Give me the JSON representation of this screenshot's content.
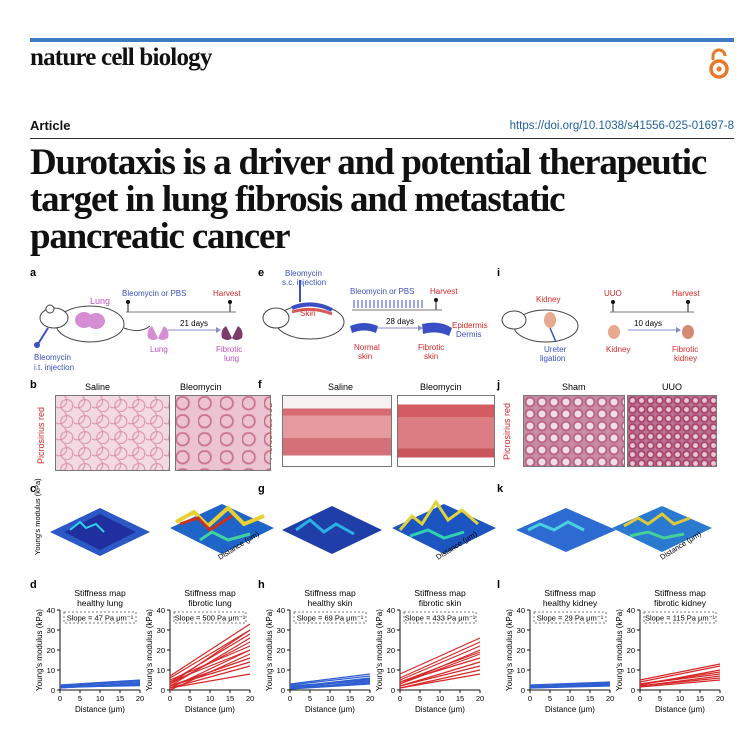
{
  "header": {
    "journal": "nature cell biology",
    "article_type": "Article",
    "doi": "https://doi.org/10.1038/s41556-025-01697-8"
  },
  "title": "Durotaxis is a driver and potential therapeutic target in lung fibrosis and metastatic pancreatic cancer",
  "colors": {
    "accent": "#3b7cc4",
    "oa_orange": "#e8782a",
    "blue_fit": "#2f5fd0",
    "red_fit": "#d62828"
  },
  "panels": {
    "a": {
      "label": "a",
      "organ": "Lung",
      "treatment": "Bleomycin or PBS",
      "harvest": "Harvest",
      "duration": "21 days",
      "injection": "Bleomycin\ni.t. injection",
      "start": "Lung",
      "end": "Fibrotic\nlung"
    },
    "e": {
      "label": "e",
      "injection": "Bleomycin\ns.c. injection",
      "organ": "Skin",
      "treatment": "Bleomycin or PBS",
      "harvest": "Harvest",
      "duration": "28 days",
      "start": "Normal\nskin",
      "end": "Fibrotic\nskin",
      "layer1": "Epidermis",
      "layer2": "Dermis"
    },
    "i": {
      "label": "i",
      "organ": "Kidney",
      "treatment": "UUO",
      "harvest": "Harvest",
      "duration": "10 days",
      "injection": "Ureter\nligation",
      "start": "Kidney",
      "end": "Fibrotic\nkidney"
    },
    "b": {
      "label": "b",
      "left": "Saline",
      "right": "Bleomycin"
    },
    "f": {
      "label": "f",
      "left": "Saline",
      "right": "Bleomycin",
      "stain": "Picrosirius red"
    },
    "j": {
      "label": "j",
      "left": "Sham",
      "right": "UUO",
      "stain": "Picrosirius red"
    },
    "c": {
      "label": "c",
      "zlabel": "Young's modulus\n(kPa)",
      "ticks": [
        "0",
        "20",
        "40",
        "60",
        "80"
      ],
      "zticks": [
        "0",
        "10",
        "20"
      ],
      "dist": "Distance (μm)"
    },
    "g": {
      "label": "g",
      "ticks": [
        "0",
        "20",
        "40",
        "60",
        "80"
      ],
      "zticks": [
        "0",
        "10",
        "20"
      ],
      "dist": "Distance (μm)"
    },
    "k": {
      "label": "k",
      "ticks": [
        "0",
        "20",
        "40",
        "60",
        "80"
      ],
      "zticks": [
        "0",
        "5",
        "10"
      ],
      "dist": "Distance (μm)"
    }
  },
  "chart_data": [
    {
      "type": "line",
      "panel": "d",
      "title": "Stiffness map\nhealthy lung",
      "annotation": "Slope = 47 Pa μm⁻¹",
      "xlabel": "Distance (μm)",
      "ylabel": "Young's modulus (kPa)",
      "xlim": [
        0,
        20
      ],
      "ylim": [
        0,
        40
      ],
      "xticks": [
        0,
        5,
        10,
        15,
        20
      ],
      "yticks": [
        0,
        10,
        20,
        30,
        40
      ],
      "color": "#2f5fd0",
      "lines": [
        [
          1.2,
          2.5
        ],
        [
          1.5,
          3.2
        ],
        [
          2,
          4
        ],
        [
          1,
          3.5
        ],
        [
          1.8,
          2.8
        ],
        [
          2.2,
          4.6
        ],
        [
          1.4,
          2.2
        ],
        [
          2.5,
          5
        ]
      ]
    },
    {
      "type": "line",
      "panel": "d2",
      "title": "Stiffness map\nfibrotic lung",
      "annotation": "Slope = 500 Pa μm⁻¹",
      "xlabel": "Distance (μm)",
      "ylabel": "Young's modulus (kPa)",
      "xlim": [
        0,
        20
      ],
      "ylim": [
        0,
        40
      ],
      "xticks": [
        0,
        5,
        10,
        15,
        20
      ],
      "yticks": [
        0,
        10,
        20,
        30,
        40
      ],
      "color": "#d62828",
      "lines": [
        [
          1,
          20
        ],
        [
          2,
          26
        ],
        [
          3,
          30
        ],
        [
          1,
          12
        ],
        [
          4,
          28
        ],
        [
          0,
          18
        ],
        [
          5,
          22
        ],
        [
          2,
          16
        ],
        [
          3,
          24
        ],
        [
          6,
          30
        ],
        [
          1,
          8
        ],
        [
          7,
          33
        ],
        [
          2,
          14
        ],
        [
          4,
          20
        ]
      ]
    },
    {
      "type": "line",
      "panel": "h",
      "title": "Stiffness map\nhealthy skin",
      "annotation": "Slope = 69 Pa μm⁻¹",
      "xlabel": "Distance (μm)",
      "ylabel": "Young's modulus (kPa)",
      "xlim": [
        0,
        20
      ],
      "ylim": [
        0,
        40
      ],
      "xticks": [
        0,
        5,
        10,
        15,
        20
      ],
      "yticks": [
        0,
        10,
        20,
        30,
        40
      ],
      "color": "#2f5fd0",
      "lines": [
        [
          1,
          4
        ],
        [
          2,
          5
        ],
        [
          1.5,
          6
        ],
        [
          0.5,
          3
        ],
        [
          2.5,
          7
        ],
        [
          1,
          5.5
        ],
        [
          3,
          8
        ],
        [
          2,
          4.5
        ],
        [
          1,
          3.5
        ]
      ]
    },
    {
      "type": "line",
      "panel": "h2",
      "title": "Stiffness map\nfibrotic skin",
      "annotation": "Slope = 433 Pa μm⁻¹",
      "xlabel": "Distance (μm)",
      "ylabel": "Young's modulus (kPa)",
      "xlim": [
        0,
        20
      ],
      "ylim": [
        0,
        40
      ],
      "xticks": [
        0,
        5,
        10,
        15,
        20
      ],
      "yticks": [
        0,
        10,
        20,
        30,
        40
      ],
      "color": "#d62828",
      "lines": [
        [
          2,
          12
        ],
        [
          3,
          18
        ],
        [
          5,
          22
        ],
        [
          1,
          10
        ],
        [
          4,
          16
        ],
        [
          6,
          24
        ],
        [
          2,
          14
        ],
        [
          3,
          20
        ],
        [
          8,
          26
        ],
        [
          1,
          8
        ],
        [
          4,
          19
        ]
      ]
    },
    {
      "type": "line",
      "panel": "l",
      "title": "Stiffness map\nhealthy kidney",
      "annotation": "Slope = 29 Pa μm⁻¹",
      "xlabel": "Distance (μm)",
      "ylabel": "Young's modulus (kPa)",
      "xlim": [
        0,
        20
      ],
      "ylim": [
        0,
        40
      ],
      "xticks": [
        0,
        5,
        10,
        15,
        20
      ],
      "yticks": [
        0,
        10,
        20,
        30,
        40
      ],
      "color": "#2f5fd0",
      "lines": [
        [
          1,
          2
        ],
        [
          1.5,
          3
        ],
        [
          2,
          3.5
        ],
        [
          1,
          2.5
        ],
        [
          2.5,
          4
        ],
        [
          1.2,
          2.8
        ]
      ]
    },
    {
      "type": "line",
      "panel": "l2",
      "title": "Stiffness map\nfibrotic kidney",
      "annotation": "Slope = 115 Pa μm⁻¹",
      "xlabel": "Distance (μm)",
      "ylabel": "Young's modulus (kPa)",
      "xlim": [
        0,
        20
      ],
      "ylim": [
        0,
        40
      ],
      "xticks": [
        0,
        5,
        10,
        15,
        20
      ],
      "yticks": [
        0,
        10,
        20,
        30,
        40
      ],
      "color": "#d62828",
      "lines": [
        [
          2,
          6
        ],
        [
          3,
          8
        ],
        [
          2.5,
          10
        ],
        [
          4,
          12
        ],
        [
          1.5,
          5
        ],
        [
          3,
          9
        ],
        [
          5,
          13
        ],
        [
          2,
          7
        ]
      ]
    }
  ]
}
